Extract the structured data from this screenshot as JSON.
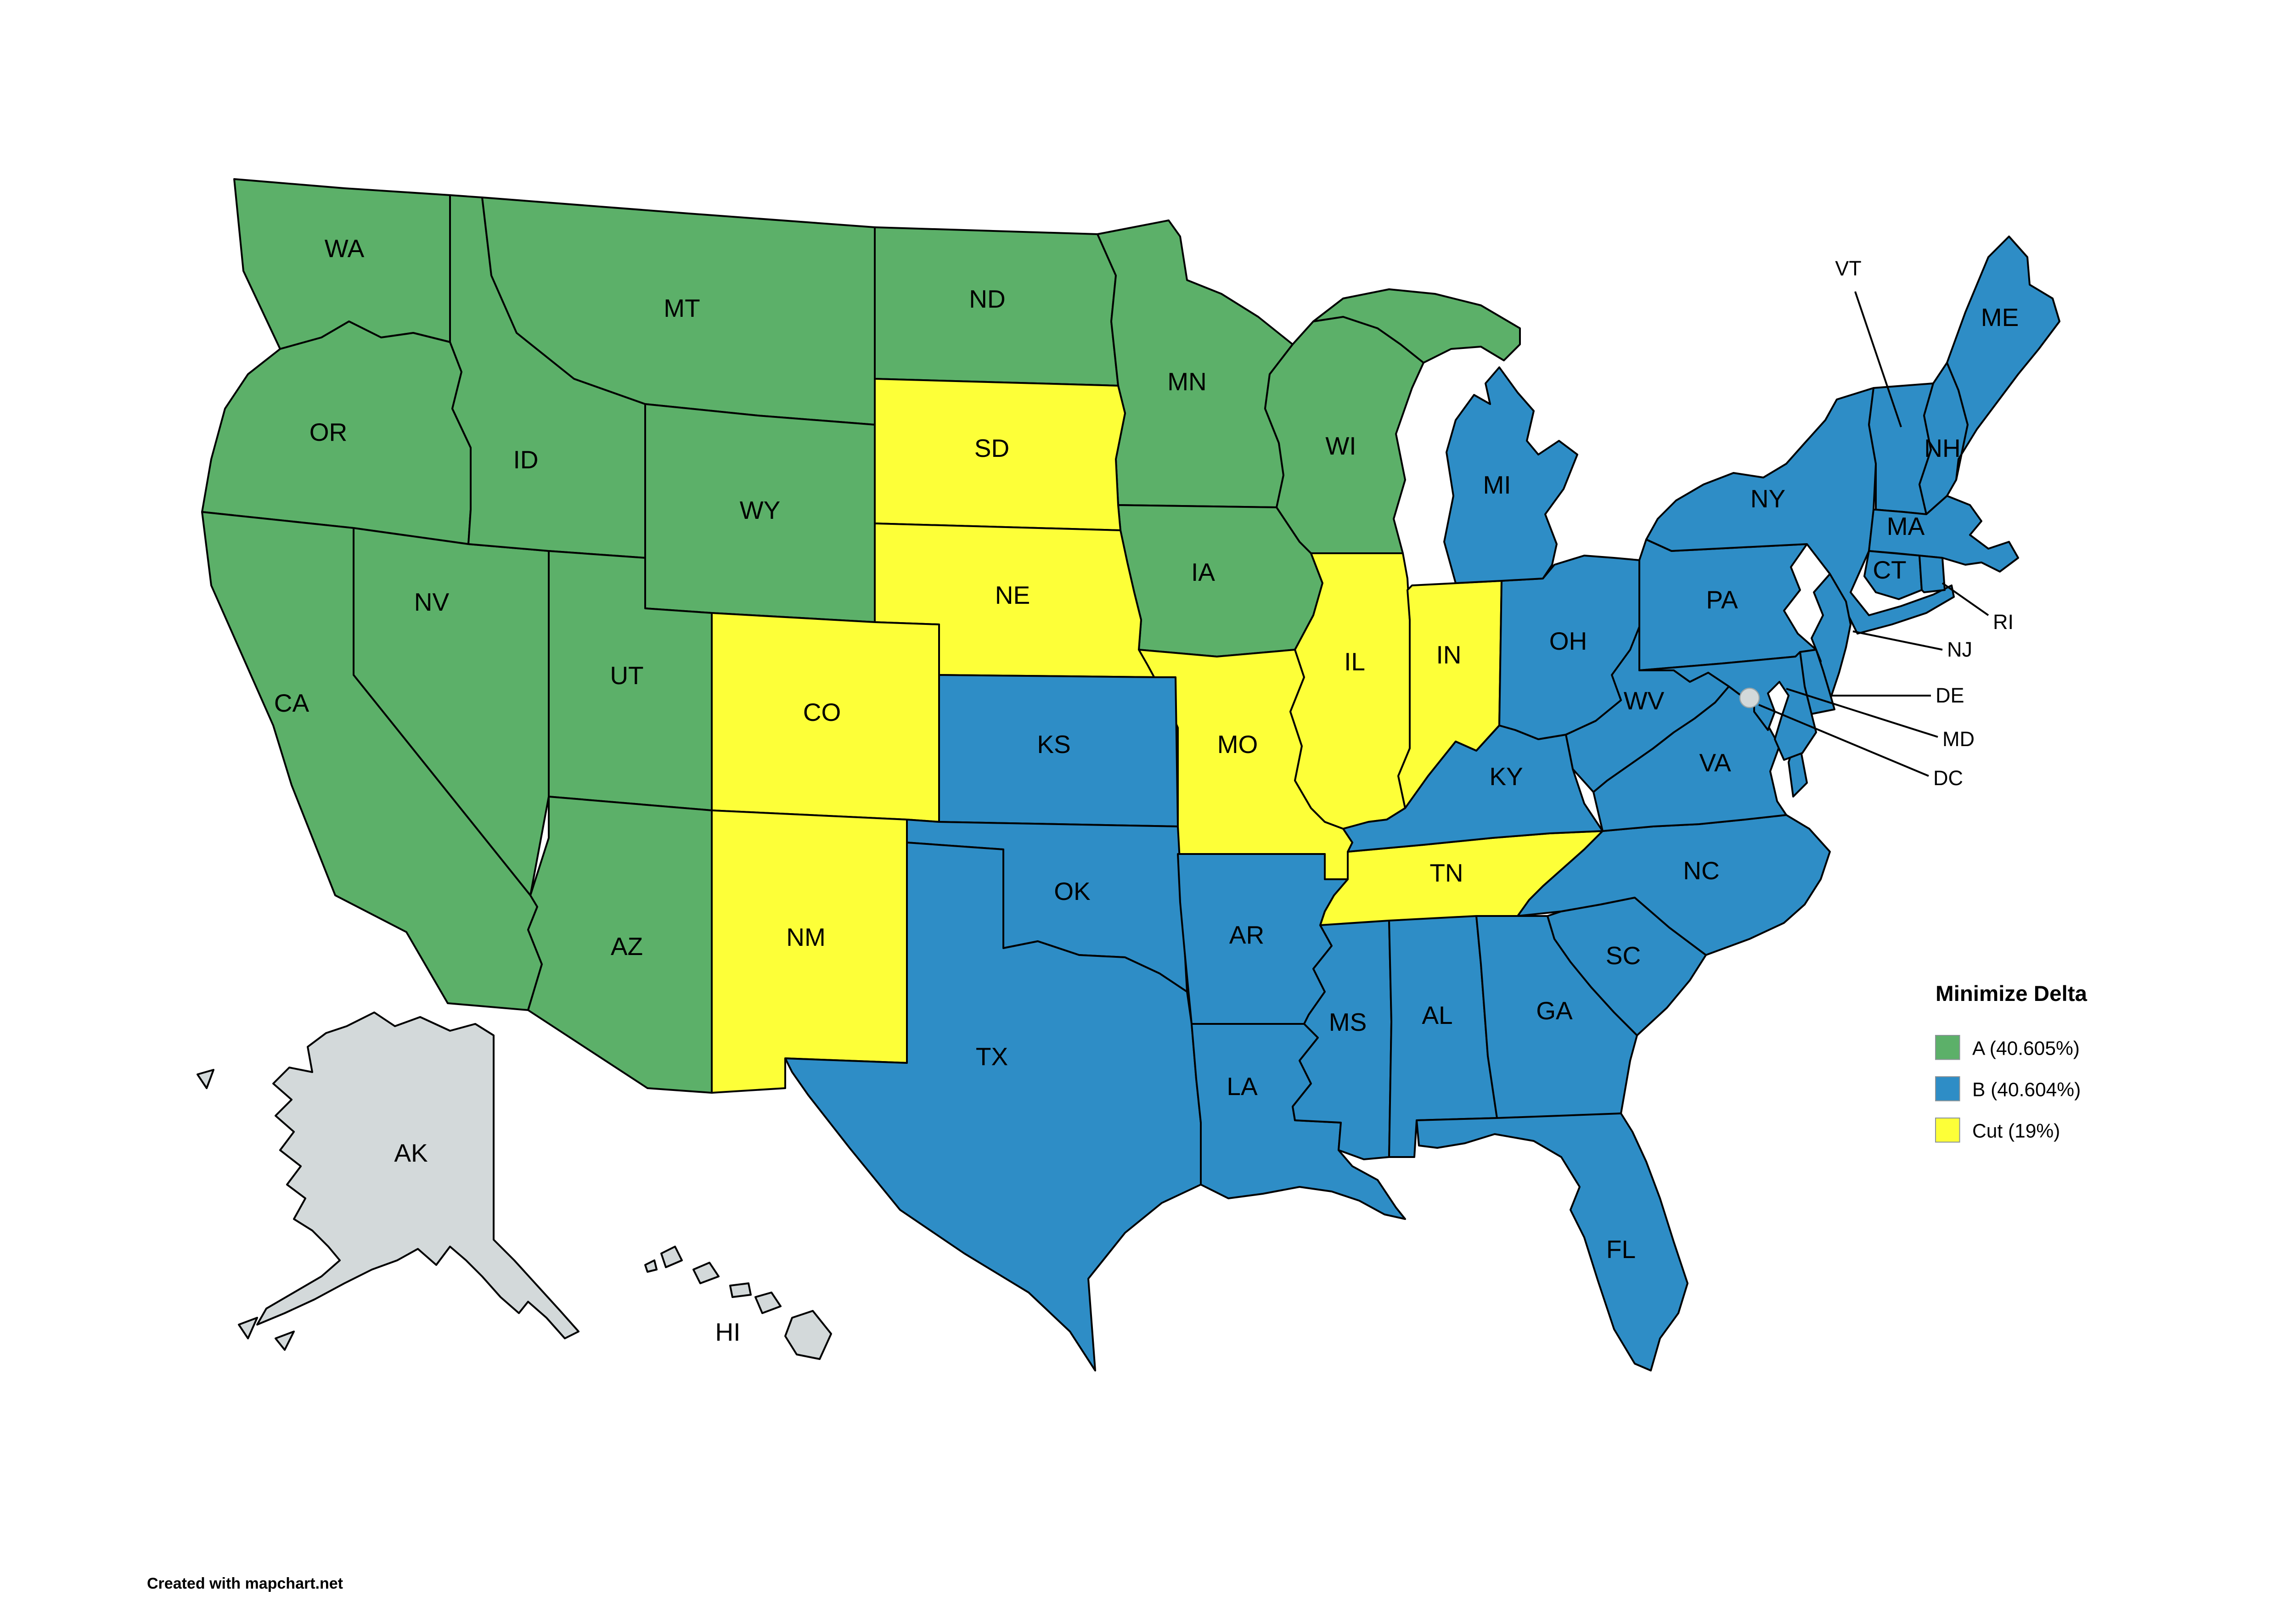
{
  "legend": {
    "title": "Minimize Delta",
    "items": [
      {
        "id": "A",
        "label": "A (40.605%)",
        "color": "#5cb069"
      },
      {
        "id": "B",
        "label": "B (40.604%)",
        "color": "#2e8dc6"
      },
      {
        "id": "Cut",
        "label": "Cut (19%)",
        "color": "#fdff38"
      }
    ]
  },
  "colors": {
    "A": "#5cb069",
    "B": "#2e8dc6",
    "Cut": "#fdff38",
    "none": "#d3d9da",
    "border": "#000000",
    "background": "#ffffff",
    "dc_dot_fill": "#d3d9da",
    "dc_dot_stroke": "#9aa5a8"
  },
  "attribution": "Created with mapchart.net",
  "regions": [
    {
      "code": "WA",
      "label": "WA",
      "category": "A"
    },
    {
      "code": "OR",
      "label": "OR",
      "category": "A"
    },
    {
      "code": "CA",
      "label": "CA",
      "category": "A"
    },
    {
      "code": "NV",
      "label": "NV",
      "category": "A"
    },
    {
      "code": "ID",
      "label": "ID",
      "category": "A"
    },
    {
      "code": "MT",
      "label": "MT",
      "category": "A"
    },
    {
      "code": "WY",
      "label": "WY",
      "category": "A"
    },
    {
      "code": "UT",
      "label": "UT",
      "category": "A"
    },
    {
      "code": "AZ",
      "label": "AZ",
      "category": "A"
    },
    {
      "code": "ND",
      "label": "ND",
      "category": "A"
    },
    {
      "code": "MN",
      "label": "MN",
      "category": "A"
    },
    {
      "code": "IA",
      "label": "IA",
      "category": "A"
    },
    {
      "code": "WI",
      "label": "WI",
      "category": "A"
    },
    {
      "code": "MI_UP",
      "label": "",
      "category": "A"
    },
    {
      "code": "SD",
      "label": "SD",
      "category": "Cut"
    },
    {
      "code": "NE",
      "label": "NE",
      "category": "Cut"
    },
    {
      "code": "CO",
      "label": "CO",
      "category": "Cut"
    },
    {
      "code": "NM",
      "label": "NM",
      "category": "Cut"
    },
    {
      "code": "MO",
      "label": "MO",
      "category": "Cut"
    },
    {
      "code": "IL",
      "label": "IL",
      "category": "Cut"
    },
    {
      "code": "IN",
      "label": "IN",
      "category": "Cut"
    },
    {
      "code": "TN",
      "label": "TN",
      "category": "Cut"
    },
    {
      "code": "KS",
      "label": "KS",
      "category": "B"
    },
    {
      "code": "OK",
      "label": "OK",
      "category": "B"
    },
    {
      "code": "TX",
      "label": "TX",
      "category": "B"
    },
    {
      "code": "AR",
      "label": "AR",
      "category": "B"
    },
    {
      "code": "LA",
      "label": "LA",
      "category": "B"
    },
    {
      "code": "MS",
      "label": "MS",
      "category": "B"
    },
    {
      "code": "AL",
      "label": "AL",
      "category": "B"
    },
    {
      "code": "GA",
      "label": "GA",
      "category": "B"
    },
    {
      "code": "FL",
      "label": "FL",
      "category": "B"
    },
    {
      "code": "SC",
      "label": "SC",
      "category": "B"
    },
    {
      "code": "NC",
      "label": "NC",
      "category": "B"
    },
    {
      "code": "VA",
      "label": "VA",
      "category": "B"
    },
    {
      "code": "WV",
      "label": "WV",
      "category": "B"
    },
    {
      "code": "KY",
      "label": "KY",
      "category": "B"
    },
    {
      "code": "OH",
      "label": "OH",
      "category": "B"
    },
    {
      "code": "MI",
      "label": "MI",
      "category": "B"
    },
    {
      "code": "PA",
      "label": "PA",
      "category": "B"
    },
    {
      "code": "NY",
      "label": "NY",
      "category": "B"
    },
    {
      "code": "VT",
      "label": "VT",
      "category": "B"
    },
    {
      "code": "NH",
      "label": "NH",
      "category": "B"
    },
    {
      "code": "ME",
      "label": "ME",
      "category": "B"
    },
    {
      "code": "MA",
      "label": "MA",
      "category": "B"
    },
    {
      "code": "CT",
      "label": "CT",
      "category": "B"
    },
    {
      "code": "RI",
      "label": "RI",
      "category": "B"
    },
    {
      "code": "NJ",
      "label": "NJ",
      "category": "B"
    },
    {
      "code": "DE",
      "label": "DE",
      "category": "B"
    },
    {
      "code": "MD",
      "label": "MD",
      "category": "B"
    },
    {
      "code": "AK",
      "label": "AK",
      "category": "none"
    },
    {
      "code": "HI",
      "label": "HI",
      "category": "none"
    },
    {
      "code": "DC",
      "label": "DC",
      "category": "none"
    }
  ]
}
